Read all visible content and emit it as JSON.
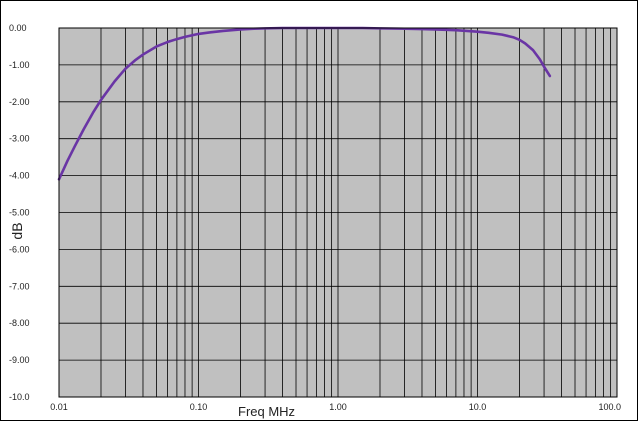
{
  "chart_data": {
    "type": "line",
    "title": "",
    "xlabel": "Freq MHz",
    "ylabel": "dB",
    "x_scale": "log",
    "xlim": [
      0.01,
      100
    ],
    "ylim": [
      -10,
      0
    ],
    "grid": true,
    "legend": "none",
    "x_ticks": [
      {
        "value": 0.01,
        "label": "0.01"
      },
      {
        "value": 0.1,
        "label": "0.10"
      },
      {
        "value": 1,
        "label": "1.00"
      },
      {
        "value": 10,
        "label": "10.0"
      },
      {
        "value": 100,
        "label": "100.0"
      }
    ],
    "y_ticks": [
      {
        "value": 0,
        "label": "0.00"
      },
      {
        "value": -1,
        "label": "-1.00"
      },
      {
        "value": -2,
        "label": "-2.00"
      },
      {
        "value": -3,
        "label": "-3.00"
      },
      {
        "value": -4,
        "label": "-4.00"
      },
      {
        "value": -5,
        "label": "-5.00"
      },
      {
        "value": -6,
        "label": "-6.00"
      },
      {
        "value": -7,
        "label": "-7.00"
      },
      {
        "value": -8,
        "label": "-8.00"
      },
      {
        "value": -9,
        "label": "-9.00"
      },
      {
        "value": -10,
        "label": "-10.0"
      }
    ],
    "series": [
      {
        "color": "#6a35a5",
        "x": [
          0.01,
          0.0115,
          0.013,
          0.015,
          0.0175,
          0.02,
          0.025,
          0.03,
          0.035,
          0.04,
          0.05,
          0.06,
          0.07,
          0.08,
          0.1,
          0.12,
          0.15,
          0.2,
          0.25,
          0.3,
          0.4,
          0.5,
          0.7,
          1,
          1.5,
          2,
          3,
          4,
          5,
          7,
          10,
          12,
          15,
          18,
          20,
          22,
          25,
          28,
          30,
          33
        ],
        "y": [
          -4.1,
          -3.6,
          -3.2,
          -2.75,
          -2.3,
          -1.95,
          -1.45,
          -1.1,
          -0.88,
          -0.72,
          -0.5,
          -0.38,
          -0.3,
          -0.24,
          -0.16,
          -0.12,
          -0.08,
          -0.04,
          -0.02,
          -0.01,
          0.0,
          0.0,
          0.0,
          0.0,
          0.0,
          -0.01,
          -0.02,
          -0.03,
          -0.04,
          -0.06,
          -0.1,
          -0.13,
          -0.18,
          -0.25,
          -0.32,
          -0.42,
          -0.6,
          -0.85,
          -1.05,
          -1.3
        ]
      }
    ],
    "colors": {
      "plot_background": "#c0c0c0",
      "grid": "#000000",
      "frame": "#000000",
      "line": "#6a35a5"
    }
  }
}
